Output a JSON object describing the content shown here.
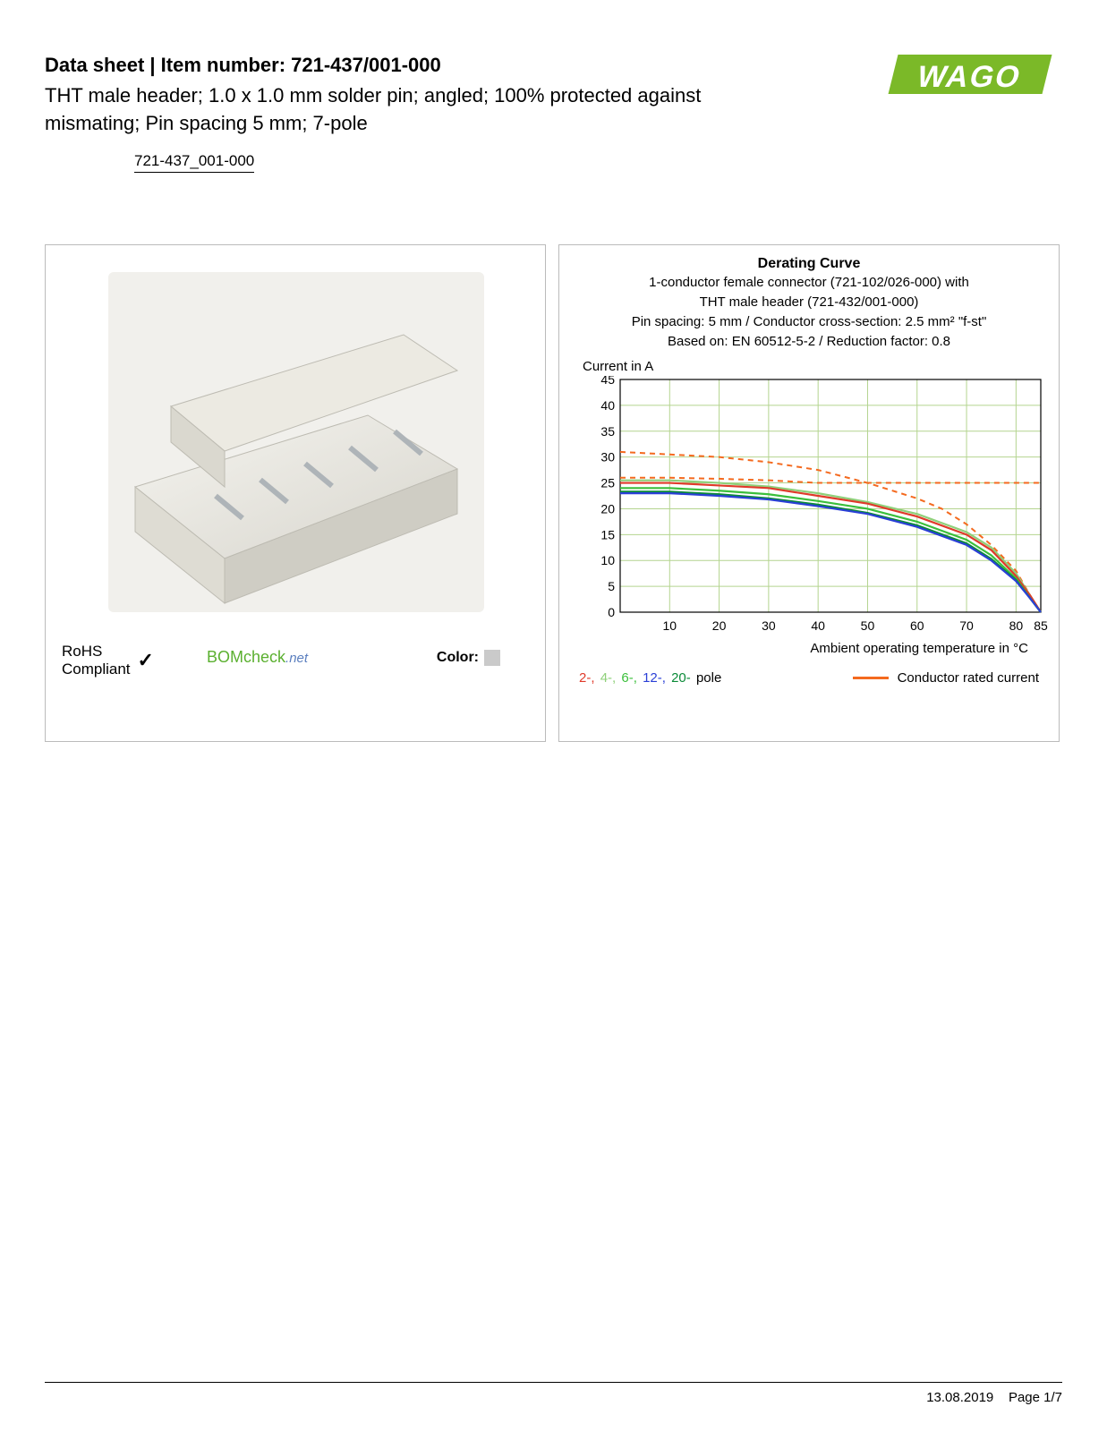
{
  "header": {
    "title_prefix": "Data sheet",
    "title_sep": " | ",
    "title_label": "Item number: ",
    "item_number": "721-437/001-000",
    "description": "THT male header; 1.0 x 1.0 mm solder pin; angled; 100% protected against mismating; Pin spacing 5 mm; 7-pole",
    "link_text": "721-437_001-000"
  },
  "logo": {
    "text": "WAGO",
    "color": "#7bb928"
  },
  "left_panel": {
    "rohs_line1": "RoHS",
    "rohs_line2": "Compliant",
    "bomcheck_main": "BOMcheck",
    "bomcheck_suffix": ".net",
    "color_label": "Color:",
    "swatch_hex": "#cacaca"
  },
  "chart": {
    "title": "Derating Curve",
    "sub1": "1-conductor female connector (721-102/026-000) with",
    "sub2": "THT male header (721-432/001-000)",
    "sub3": "Pin spacing: 5 mm / Conductor cross-section: 2.5 mm² \"f-st\"",
    "sub4": "Based on: EN 60512-5-2 / Reduction factor: 0.8",
    "y_label": "Current in A",
    "x_label": "Ambient operating temperature in °C",
    "y_ticks": [
      0,
      5,
      10,
      15,
      20,
      25,
      30,
      35,
      40,
      45
    ],
    "x_ticks": [
      10,
      20,
      30,
      40,
      50,
      60,
      70,
      80,
      85
    ],
    "x_max": 85,
    "y_max": 45,
    "grid_color": "#b4d48f",
    "colors": {
      "pole2": "#e03a2a",
      "pole4": "#8fd07a",
      "pole6": "#3bbf3b",
      "pole12": "#2a3fd6",
      "pole20": "#0a8a37",
      "rated": "#f46a1f"
    },
    "series": {
      "rated_dashed": [
        [
          0,
          26
        ],
        [
          10,
          26
        ],
        [
          20,
          25.8
        ],
        [
          30,
          25.5
        ],
        [
          40,
          25
        ],
        [
          85,
          25
        ]
      ],
      "rated_solid_2": [
        [
          0,
          31
        ],
        [
          10,
          30.5
        ],
        [
          20,
          30
        ],
        [
          30,
          29
        ],
        [
          40,
          27.5
        ],
        [
          50,
          25
        ],
        [
          60,
          22
        ],
        [
          65,
          20
        ],
        [
          70,
          17
        ],
        [
          75,
          13
        ],
        [
          80,
          8
        ],
        [
          83,
          3
        ],
        [
          85,
          0
        ]
      ],
      "pole2": [
        [
          0,
          25
        ],
        [
          10,
          25
        ],
        [
          20,
          24.5
        ],
        [
          30,
          24
        ],
        [
          40,
          22.5
        ],
        [
          50,
          21
        ],
        [
          60,
          18.5
        ],
        [
          70,
          15
        ],
        [
          75,
          12
        ],
        [
          80,
          7
        ],
        [
          83,
          3
        ],
        [
          85,
          0
        ]
      ],
      "pole4": [
        [
          0,
          25.5
        ],
        [
          10,
          25.5
        ],
        [
          20,
          25
        ],
        [
          30,
          24.3
        ],
        [
          40,
          23
        ],
        [
          50,
          21.3
        ],
        [
          60,
          19
        ],
        [
          70,
          15.5
        ],
        [
          75,
          12.5
        ],
        [
          80,
          7.5
        ],
        [
          83,
          3
        ],
        [
          85,
          0
        ]
      ],
      "pole6": [
        [
          0,
          24
        ],
        [
          10,
          24
        ],
        [
          20,
          23.5
        ],
        [
          30,
          22.8
        ],
        [
          40,
          21.5
        ],
        [
          50,
          20
        ],
        [
          60,
          17.5
        ],
        [
          70,
          14
        ],
        [
          75,
          11
        ],
        [
          80,
          6.5
        ],
        [
          83,
          2.5
        ],
        [
          85,
          0
        ]
      ],
      "pole12": [
        [
          0,
          23
        ],
        [
          10,
          23
        ],
        [
          20,
          22.5
        ],
        [
          30,
          21.8
        ],
        [
          40,
          20.5
        ],
        [
          50,
          19
        ],
        [
          60,
          16.5
        ],
        [
          70,
          13
        ],
        [
          75,
          10
        ],
        [
          80,
          6
        ],
        [
          83,
          2.5
        ],
        [
          85,
          0
        ]
      ],
      "pole20": [
        [
          0,
          23.3
        ],
        [
          10,
          23.3
        ],
        [
          20,
          22.8
        ],
        [
          30,
          22
        ],
        [
          40,
          20.8
        ],
        [
          50,
          19.2
        ],
        [
          60,
          16.8
        ],
        [
          70,
          13.3
        ],
        [
          75,
          10.3
        ],
        [
          80,
          6.2
        ],
        [
          83,
          2.5
        ],
        [
          85,
          0
        ]
      ]
    },
    "legend": {
      "p2": "2-,",
      "p4": "4-,",
      "p6": "6-,",
      "p12": "12-,",
      "p20": "20-",
      "pole_word": " pole",
      "rated": "Conductor rated current"
    }
  },
  "footer": {
    "date": "13.08.2019",
    "page": "Page 1/7"
  }
}
